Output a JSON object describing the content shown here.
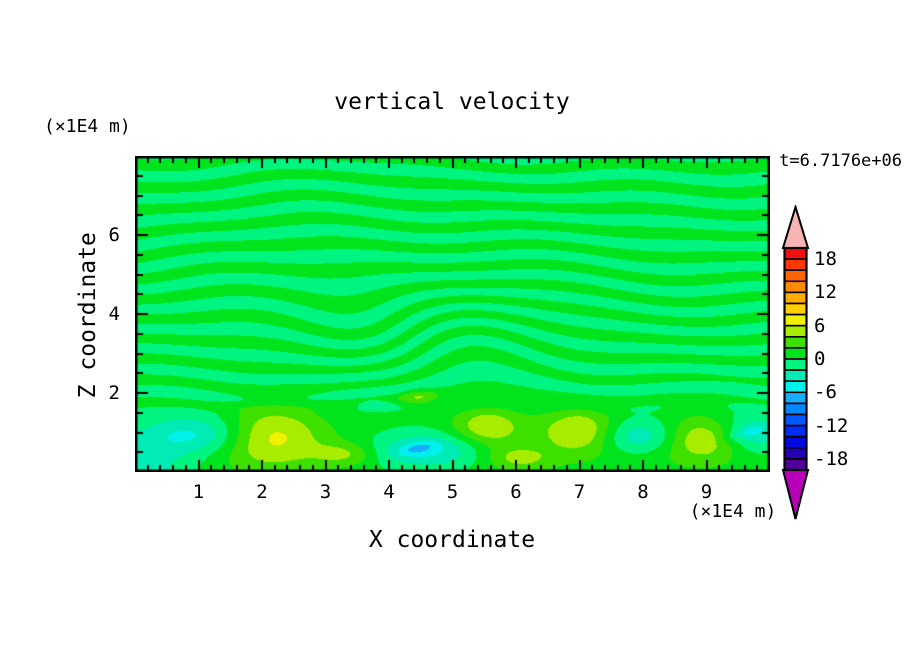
{
  "chart_data": {
    "type": "heatmap",
    "title": "vertical velocity",
    "time_label": "t=6.7176e+06",
    "xlabel": "X coordinate",
    "ylabel": "Z coordinate",
    "x_unit": "(×1E4 m)",
    "z_unit": "(×1E4 m)",
    "x_range": [
      0,
      10
    ],
    "z_range": [
      0,
      8
    ],
    "x_major_ticks": [
      1,
      2,
      3,
      4,
      5,
      6,
      7,
      8,
      9
    ],
    "x_minor_step": 0.2,
    "z_major_ticks": [
      2,
      4,
      6
    ],
    "z_minor_step": 0.5,
    "grid": false,
    "legend_position": "right-colorbar",
    "colorbar": {
      "min": -20,
      "max": 20,
      "cell_size": 2,
      "labels": [
        18,
        12,
        6,
        0,
        -6,
        -12,
        -18
      ],
      "over_color": "#f8b4b4",
      "under_color": "#b800b8",
      "cells": [
        {
          "range": [
            18,
            20
          ],
          "color": "#ee1010"
        },
        {
          "range": [
            16,
            18
          ],
          "color": "#fa3800"
        },
        {
          "range": [
            14,
            16
          ],
          "color": "#ff6400"
        },
        {
          "range": [
            12,
            14
          ],
          "color": "#ff8c00"
        },
        {
          "range": [
            10,
            12
          ],
          "color": "#ffac00"
        },
        {
          "range": [
            8,
            10
          ],
          "color": "#ffd000"
        },
        {
          "range": [
            6,
            8
          ],
          "color": "#eef200"
        },
        {
          "range": [
            4,
            6
          ],
          "color": "#a8ec00"
        },
        {
          "range": [
            2,
            4
          ],
          "color": "#3ee000"
        },
        {
          "range": [
            0,
            2
          ],
          "color": "#00e41e"
        },
        {
          "range": [
            -2,
            0
          ],
          "color": "#00f580"
        },
        {
          "range": [
            -4,
            -2
          ],
          "color": "#00ecb4"
        },
        {
          "range": [
            -6,
            -4
          ],
          "color": "#00f0ec"
        },
        {
          "range": [
            -8,
            -6
          ],
          "color": "#18acff"
        },
        {
          "range": [
            -10,
            -8
          ],
          "color": "#0088ff"
        },
        {
          "range": [
            -12,
            -10
          ],
          "color": "#0058ff"
        },
        {
          "range": [
            -14,
            -12
          ],
          "color": "#002cf4"
        },
        {
          "range": [
            -16,
            -14
          ],
          "color": "#0008e0"
        },
        {
          "range": [
            -18,
            -16
          ],
          "color": "#2400b0"
        },
        {
          "range": [
            -20,
            -18
          ],
          "color": "#500098"
        }
      ]
    },
    "field": {
      "description": "w oscillates around 0 (green/spring-green streaks) aloft; positive band with yellow updraft cores and cyan/blue downdraft patches below z=2",
      "streak": {
        "z_period": 0.55,
        "amp": 1.25,
        "fade_lo": 1.3,
        "fade_hi": 2.05
      },
      "ripple": {
        "x": 4.4,
        "z": 3.4,
        "rx": 1.4,
        "rz": 1.15,
        "strength": -8.5
      },
      "band": {
        "amp": 1.3,
        "z": 0.55,
        "rz": 1.15,
        "dip_amp": -0.45,
        "dip_z": 1.95,
        "dip_rz": 0.5
      },
      "blobs": [
        {
          "x": -0.2,
          "z": 0.2,
          "rx": 1.0,
          "rz": 0.75,
          "amp": -5.6,
          "rot": 0
        },
        {
          "x": 0.95,
          "z": 0.95,
          "rx": 0.85,
          "rz": 0.5,
          "amp": -5.4,
          "rot": 0
        },
        {
          "x": 2.15,
          "z": 0.9,
          "rx": 0.8,
          "rz": 0.8,
          "amp": 5.6,
          "rot": 0
        },
        {
          "x": 3.3,
          "z": 0.45,
          "rx": 0.5,
          "rz": 0.3,
          "amp": 3.4,
          "rot": 0
        },
        {
          "x": 4.6,
          "z": 0.55,
          "rx": 0.85,
          "rz": 0.45,
          "amp": -5.6,
          "rot": 0
        },
        {
          "x": 4.45,
          "z": 0.6,
          "rx": 0.35,
          "rz": 0.14,
          "amp": -2.6,
          "rot": -20
        },
        {
          "x": 3.78,
          "z": 1.72,
          "rx": 0.22,
          "rz": 0.1,
          "amp": -2.6,
          "rot": 0
        },
        {
          "x": 4.47,
          "z": 1.87,
          "rx": 0.3,
          "rz": 0.24,
          "amp": 3.2,
          "rot": 0
        },
        {
          "x": 5.55,
          "z": 1.15,
          "rx": 0.55,
          "rz": 0.5,
          "amp": 5.0,
          "rot": 0
        },
        {
          "x": 6.05,
          "z": 0.35,
          "rx": 0.5,
          "rz": 0.3,
          "amp": 3.6,
          "rot": 0
        },
        {
          "x": 7.0,
          "z": 1.05,
          "rx": 0.6,
          "rz": 0.55,
          "amp": 5.2,
          "rot": 0
        },
        {
          "x": 7.95,
          "z": 0.9,
          "rx": 0.65,
          "rz": 0.45,
          "amp": -5.2,
          "rot": 0
        },
        {
          "x": 9.0,
          "z": 0.85,
          "rx": 0.7,
          "rz": 0.55,
          "amp": 5.4,
          "rot": 0
        },
        {
          "x": 9.7,
          "z": 0.95,
          "rx": 0.6,
          "rz": 0.5,
          "amp": -5.6,
          "rot": 0
        },
        {
          "x": 9.62,
          "z": 1.0,
          "rx": 0.33,
          "rz": 0.13,
          "amp": -2.4,
          "rot": -25
        }
      ]
    }
  }
}
